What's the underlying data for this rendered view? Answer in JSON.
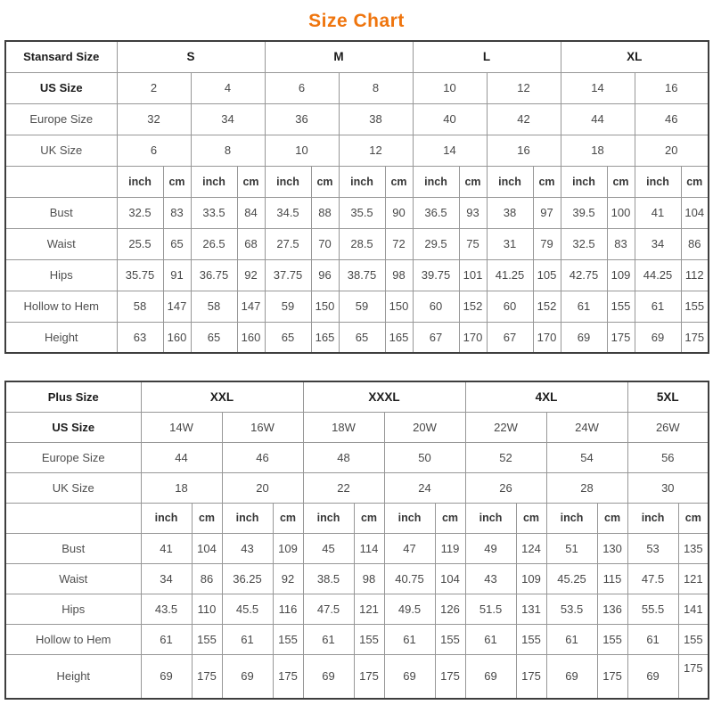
{
  "title": "Size Chart",
  "accent_color": "#ef750e",
  "chart_data": [
    {
      "type": "table",
      "corner_label": "Stansard Size",
      "groups": [
        {
          "label": "S",
          "span": 2
        },
        {
          "label": "M",
          "span": 2
        },
        {
          "label": "L",
          "span": 2
        },
        {
          "label": "XL",
          "span": 2
        }
      ],
      "size_rows": [
        {
          "label": "US Size",
          "bold": true,
          "values": [
            "2",
            "4",
            "6",
            "8",
            "10",
            "12",
            "14",
            "16"
          ]
        },
        {
          "label": "Europe Size",
          "bold": false,
          "values": [
            "32",
            "34",
            "36",
            "38",
            "40",
            "42",
            "44",
            "46"
          ]
        },
        {
          "label": "UK Size",
          "bold": false,
          "values": [
            "6",
            "8",
            "10",
            "12",
            "14",
            "16",
            "18",
            "20"
          ]
        }
      ],
      "units": [
        "inch",
        "cm"
      ],
      "measure_rows": [
        {
          "label": "Bust",
          "values": [
            "32.5",
            "83",
            "33.5",
            "84",
            "34.5",
            "88",
            "35.5",
            "90",
            "36.5",
            "93",
            "38",
            "97",
            "39.5",
            "100",
            "41",
            "104"
          ]
        },
        {
          "label": "Waist",
          "values": [
            "25.5",
            "65",
            "26.5",
            "68",
            "27.5",
            "70",
            "28.5",
            "72",
            "29.5",
            "75",
            "31",
            "79",
            "32.5",
            "83",
            "34",
            "86"
          ]
        },
        {
          "label": "Hips",
          "values": [
            "35.75",
            "91",
            "36.75",
            "92",
            "37.75",
            "96",
            "38.75",
            "98",
            "39.75",
            "101",
            "41.25",
            "105",
            "42.75",
            "109",
            "44.25",
            "112"
          ]
        },
        {
          "label": "Hollow to Hem",
          "values": [
            "58",
            "147",
            "58",
            "147",
            "59",
            "150",
            "59",
            "150",
            "60",
            "152",
            "60",
            "152",
            "61",
            "155",
            "61",
            "155"
          ]
        },
        {
          "label": "Height",
          "values": [
            "63",
            "160",
            "65",
            "160",
            "65",
            "165",
            "65",
            "165",
            "67",
            "170",
            "67",
            "170",
            "69",
            "175",
            "69",
            "175"
          ]
        }
      ]
    },
    {
      "type": "table",
      "corner_label": "Plus Size",
      "groups": [
        {
          "label": "XXL",
          "span": 2
        },
        {
          "label": "XXXL",
          "span": 2
        },
        {
          "label": "4XL",
          "span": 2
        },
        {
          "label": "5XL",
          "span": 1
        }
      ],
      "size_rows": [
        {
          "label": "US Size",
          "bold": true,
          "values": [
            "14W",
            "16W",
            "18W",
            "20W",
            "22W",
            "24W",
            "26W"
          ]
        },
        {
          "label": "Europe Size",
          "bold": false,
          "values": [
            "44",
            "46",
            "48",
            "50",
            "52",
            "54",
            "56"
          ]
        },
        {
          "label": "UK Size",
          "bold": false,
          "values": [
            "18",
            "20",
            "22",
            "24",
            "26",
            "28",
            "30"
          ]
        }
      ],
      "units": [
        "inch",
        "cm"
      ],
      "measure_rows": [
        {
          "label": "Bust",
          "values": [
            "41",
            "104",
            "43",
            "109",
            "45",
            "114",
            "47",
            "119",
            "49",
            "124",
            "51",
            "130",
            "53",
            "135"
          ]
        },
        {
          "label": "Waist",
          "values": [
            "34",
            "86",
            "36.25",
            "92",
            "38.5",
            "98",
            "40.75",
            "104",
            "43",
            "109",
            "45.25",
            "115",
            "47.5",
            "121"
          ]
        },
        {
          "label": "Hips",
          "values": [
            "43.5",
            "110",
            "45.5",
            "116",
            "47.5",
            "121",
            "49.5",
            "126",
            "51.5",
            "131",
            "53.5",
            "136",
            "55.5",
            "141"
          ]
        },
        {
          "label": "Hollow to Hem",
          "values": [
            "61",
            "155",
            "61",
            "155",
            "61",
            "155",
            "61",
            "155",
            "61",
            "155",
            "61",
            "155",
            "61",
            "155"
          ]
        },
        {
          "label": "Height",
          "values": [
            "69",
            "175",
            "69",
            "175",
            "69",
            "175",
            "69",
            "175",
            "69",
            "175",
            "69",
            "175",
            "69",
            "175"
          ]
        }
      ]
    }
  ]
}
